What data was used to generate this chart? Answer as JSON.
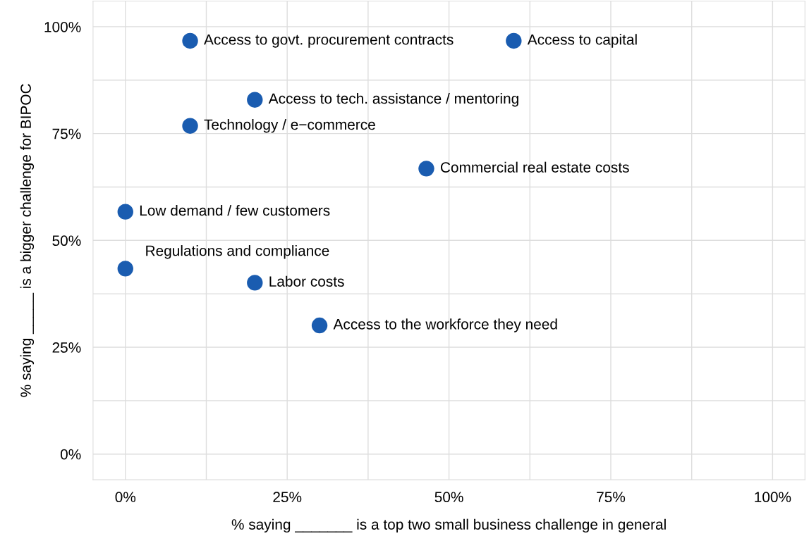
{
  "chart_data": {
    "type": "scatter",
    "xlabel": "% saying _______ is a top two small business challenge in general",
    "ylabel": "% saying _____ is a bigger challenge for BIPOC",
    "x": [
      10,
      60,
      20,
      10,
      46.5,
      0,
      0,
      20,
      30
    ],
    "series": [
      {
        "color": "#1a5cb0",
        "values": [
          96.7,
          96.7,
          82.9,
          76.8,
          66.8,
          56.7,
          43.4,
          40.1,
          30.1
        ]
      }
    ],
    "annotations": [
      {
        "text": "Access to govt. procurement contracts",
        "x": 10,
        "y": 96.7
      },
      {
        "text": "Access to capital",
        "x": 60,
        "y": 96.7
      },
      {
        "text": "Access to tech. assistance / mentoring",
        "x": 20,
        "y": 82.9
      },
      {
        "text": "Technology / e−commerce",
        "x": 10,
        "y": 76.8
      },
      {
        "text": "Commercial real estate costs",
        "x": 46.5,
        "y": 66.8
      },
      {
        "text": "Low demand / few customers",
        "x": 0,
        "y": 56.7
      },
      {
        "text": "Regulations and compliance",
        "x": 0,
        "y": 43.4
      },
      {
        "text": "Labor costs",
        "x": 20,
        "y": 40.1
      },
      {
        "text": "Access to the workforce they need",
        "x": 30,
        "y": 30.1
      }
    ],
    "xlim": [
      -5,
      105
    ],
    "ylim": [
      -6,
      106
    ],
    "xticks": [
      {
        "value": 0,
        "label": "0%"
      },
      {
        "value": 12.5,
        "label": null
      },
      {
        "value": 25,
        "label": "25%"
      },
      {
        "value": 37.5,
        "label": null
      },
      {
        "value": 50,
        "label": "50%"
      },
      {
        "value": 62.5,
        "label": null
      },
      {
        "value": 75,
        "label": "75%"
      },
      {
        "value": 87.5,
        "label": null
      },
      {
        "value": 100,
        "label": "100%"
      }
    ],
    "yticks": [
      {
        "value": 0,
        "label": "0%"
      },
      {
        "value": 12.5,
        "label": null
      },
      {
        "value": 25,
        "label": "25%"
      },
      {
        "value": 37.5,
        "label": null
      },
      {
        "value": 50,
        "label": "50%"
      },
      {
        "value": 62.5,
        "label": null
      },
      {
        "value": 75,
        "label": "75%"
      },
      {
        "value": 87.5,
        "label": null
      },
      {
        "value": 100,
        "label": "100%"
      }
    ],
    "grid": true,
    "marker": "circle"
  }
}
